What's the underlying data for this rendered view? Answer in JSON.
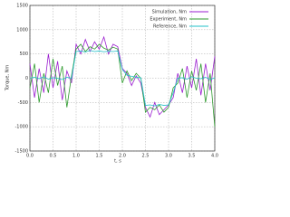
{
  "chart_data": {
    "type": "line",
    "xlabel": "t, s",
    "ylabel": "Torque, Nm",
    "x": [
      0,
      0.1,
      0.2,
      0.3,
      0.4,
      0.5,
      0.6,
      0.7,
      0.8,
      0.9,
      1.0,
      1.1,
      1.2,
      1.3,
      1.4,
      1.5,
      1.6,
      1.7,
      1.8,
      1.9,
      2.0,
      2.1,
      2.2,
      2.3,
      2.4,
      2.5,
      2.6,
      2.7,
      2.8,
      2.9,
      3.0,
      3.1,
      3.2,
      3.3,
      3.4,
      3.5,
      3.6,
      3.7,
      3.8,
      3.9,
      4.0
    ],
    "series": [
      {
        "name": "Simulation, Nm",
        "color": "#9b1fd0",
        "values": [
          300,
          -400,
          200,
          -300,
          500,
          -200,
          350,
          -450,
          150,
          -100,
          700,
          500,
          800,
          550,
          750,
          600,
          850,
          500,
          700,
          650,
          200,
          100,
          -150,
          50,
          -100,
          -600,
          -800,
          -500,
          -750,
          -650,
          -550,
          -400,
          100,
          -300,
          250,
          -200,
          400,
          -350,
          300,
          -250,
          450
        ]
      },
      {
        "name": "Experiment, Nm",
        "color": "#2e9a2e",
        "values": [
          -200,
          300,
          -500,
          100,
          -300,
          400,
          -150,
          250,
          -600,
          50,
          600,
          700,
          550,
          650,
          600,
          700,
          620,
          580,
          640,
          600,
          -100,
          150,
          -50,
          100,
          0,
          -700,
          -600,
          -650,
          -550,
          -700,
          -600,
          -200,
          -100,
          200,
          -400,
          150,
          -250,
          300,
          -500,
          100,
          -1000
        ]
      },
      {
        "name": "Reference, Nm",
        "color": "#20c0c8",
        "values": [
          0,
          20,
          -10,
          30,
          -20,
          10,
          0,
          -30,
          20,
          0,
          550,
          560,
          540,
          570,
          550,
          560,
          545,
          555,
          550,
          560,
          180,
          60,
          40,
          20,
          10,
          -560,
          -550,
          -570,
          -540,
          -560,
          -550,
          -300,
          0,
          10,
          -20,
          30,
          0,
          -10,
          20,
          -30,
          10
        ]
      }
    ],
    "xlim": [
      0,
      4
    ],
    "xticks": [
      {
        "value": 0,
        "label": "0.0"
      },
      {
        "value": 0.5,
        "label": "0.5"
      },
      {
        "value": 1,
        "label": "1.0"
      },
      {
        "value": 1.5,
        "label": "1.5"
      },
      {
        "value": 2,
        "label": "2.0"
      },
      {
        "value": 2.5,
        "label": "2.5"
      },
      {
        "value": 3,
        "label": "3.0"
      },
      {
        "value": 3.5,
        "label": "3.5"
      },
      {
        "value": 4,
        "label": "4.0"
      }
    ],
    "ylim": [
      -1500,
      1500
    ],
    "yticks": [
      -1500,
      -1000,
      -500,
      0,
      500,
      1000,
      1500
    ],
    "grid": true,
    "legend": "upper right"
  }
}
